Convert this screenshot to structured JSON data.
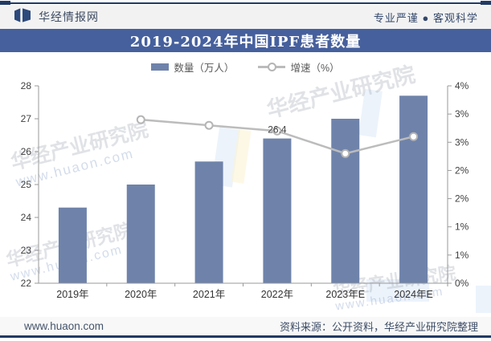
{
  "header": {
    "brand": "华经情报网",
    "slogan": "专业严谨 ● 客观科学"
  },
  "title": "2019-2024年中国IPF患者数量",
  "legend": {
    "bar_label": "数量（万人）",
    "line_label": "增速（%）"
  },
  "chart_data": {
    "type": "bar",
    "subtype": "bar+line combo, dual axis",
    "title": "2019-2024年中国IPF患者数量",
    "categories": [
      "2019年",
      "2020年",
      "2021年",
      "2022年",
      "2023年E",
      "2024年E"
    ],
    "series": [
      {
        "name": "数量（万人）",
        "type": "bar",
        "axis": "left",
        "values": [
          24.3,
          25.0,
          25.7,
          26.4,
          27.0,
          27.7
        ]
      },
      {
        "name": "增速（%）",
        "type": "line",
        "axis": "right",
        "values": [
          null,
          2.9,
          2.8,
          2.7,
          2.3,
          2.6
        ]
      }
    ],
    "point_label": {
      "category_index": 3,
      "text": "26.4"
    },
    "left_axis": {
      "min": 22,
      "max": 28,
      "step": 1,
      "labels": [
        "22",
        "23",
        "24",
        "25",
        "26",
        "27",
        "28"
      ]
    },
    "right_axis": {
      "min": 0,
      "max": 3.5,
      "step": 0.5,
      "labels_bottom_to_top": [
        "0%",
        "1%",
        "1%",
        "2%",
        "2%",
        "3%",
        "3%",
        "4%"
      ]
    },
    "grid": false,
    "legend_position": "top-center",
    "colors": {
      "bar": "#6f83aa",
      "line": "#bcbcbc",
      "marker_fill": "#ffffff",
      "marker_stroke": "#b5b5b5",
      "axis": "#9a9a9a",
      "tick_text": "#404040",
      "title_bg": "#46609d",
      "accent_navy": "#203a64"
    }
  },
  "watermark": {
    "line1": "华经产业研究院",
    "line2": "www.huaon.com"
  },
  "footer": {
    "site": "www.huaon.com",
    "source": "资料来源：公开资料，华经产业研究院整理"
  }
}
